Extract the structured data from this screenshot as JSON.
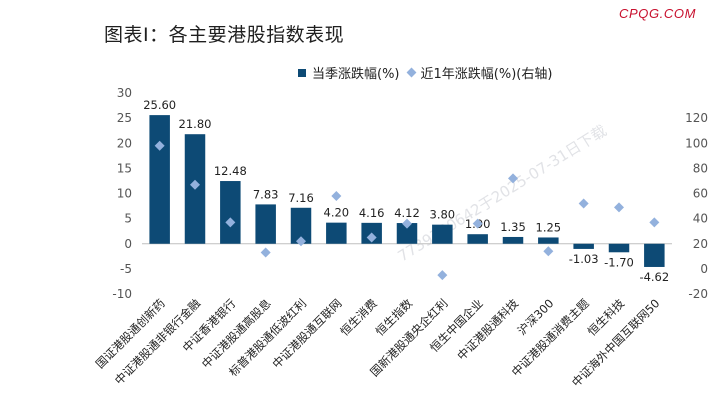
{
  "title": "图表I：各主要港股指数表现",
  "brand": "CPQG.COM",
  "watermark": "7739730642于2025-07-31日下载",
  "legend": {
    "bar_label": "当季涨跌幅(%)",
    "marker_label": "近1年涨跌幅(%)(右轴)"
  },
  "colors": {
    "bar": "#0d4a75",
    "marker": "#93b1dd"
  },
  "chart_data": {
    "type": "bar",
    "categories": [
      "国证港股通创新药",
      "中证港股通非银行金融",
      "中证香港银行",
      "中证港股通高股息",
      "标普港股通低波红利",
      "中证港股通互联网",
      "恒生消费",
      "恒生指数",
      "国新港股通央企红利",
      "恒生中国企业",
      "中证港股通科技",
      "沪深300",
      "中证港股通消费主题",
      "恒生科技",
      "中证海外中国互联网50"
    ],
    "series": [
      {
        "name": "当季涨跌幅(%)",
        "axis": "left",
        "values": [
          25.6,
          21.8,
          12.48,
          7.83,
          7.16,
          4.2,
          4.16,
          4.12,
          3.8,
          1.9,
          1.35,
          1.25,
          -1.03,
          -1.7,
          -4.62
        ]
      },
      {
        "name": "近1年涨跌幅(%)(右轴)",
        "axis": "right",
        "values": [
          98,
          67,
          37,
          13,
          22,
          58,
          25,
          36,
          -5,
          36,
          72,
          14,
          52,
          49,
          37
        ]
      }
    ],
    "left_axis": {
      "ylim": [
        -10,
        30
      ],
      "ticks": [
        "-10",
        "-5",
        "0",
        "5",
        "10",
        "15",
        "20",
        "25",
        "30"
      ]
    },
    "right_axis": {
      "ylim": [
        -20,
        140
      ],
      "ticks": [
        "-20",
        "0",
        "20",
        "40",
        "60",
        "80",
        "100",
        "120"
      ]
    },
    "grid": false,
    "legend_position": "top"
  }
}
